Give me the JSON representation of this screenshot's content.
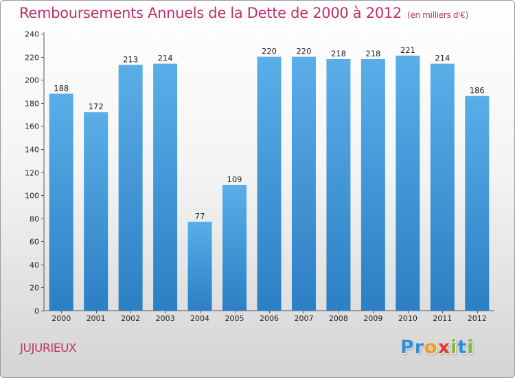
{
  "title": "Remboursements Annuels de la Dette de 2000 à 2012",
  "unit": "(en milliers d'€)",
  "commune": "JUJURIEUX",
  "logo": {
    "letters": [
      "P",
      "r",
      "o",
      "x",
      "i",
      "t",
      "i"
    ],
    "colors": [
      "#2f8fd8",
      "#2f8fd8",
      "#f29a1d",
      "#e23a2c",
      "#7dbb2d",
      "#2f8fd8",
      "#7dbb2d"
    ]
  },
  "colors": {
    "bar_top": "#5aaee8",
    "bar_bottom": "#2c7fc4",
    "title": "#c0306a"
  },
  "chart_data": {
    "type": "bar",
    "title": "Remboursements Annuels de la Dette de 2000 à 2012",
    "subtitle": "(en milliers d'€)",
    "categories": [
      "2000",
      "2001",
      "2002",
      "2003",
      "2004",
      "2005",
      "2006",
      "2007",
      "2008",
      "2009",
      "2010",
      "2011",
      "2012"
    ],
    "values": [
      188,
      172,
      213,
      214,
      77,
      109,
      220,
      220,
      218,
      218,
      221,
      214,
      186
    ],
    "xlabel": "",
    "ylabel": "",
    "ylim": [
      0,
      240
    ],
    "yticks": [
      0,
      20,
      40,
      60,
      80,
      100,
      120,
      140,
      160,
      180,
      200,
      220,
      240
    ],
    "grid": false,
    "legend": "none"
  }
}
